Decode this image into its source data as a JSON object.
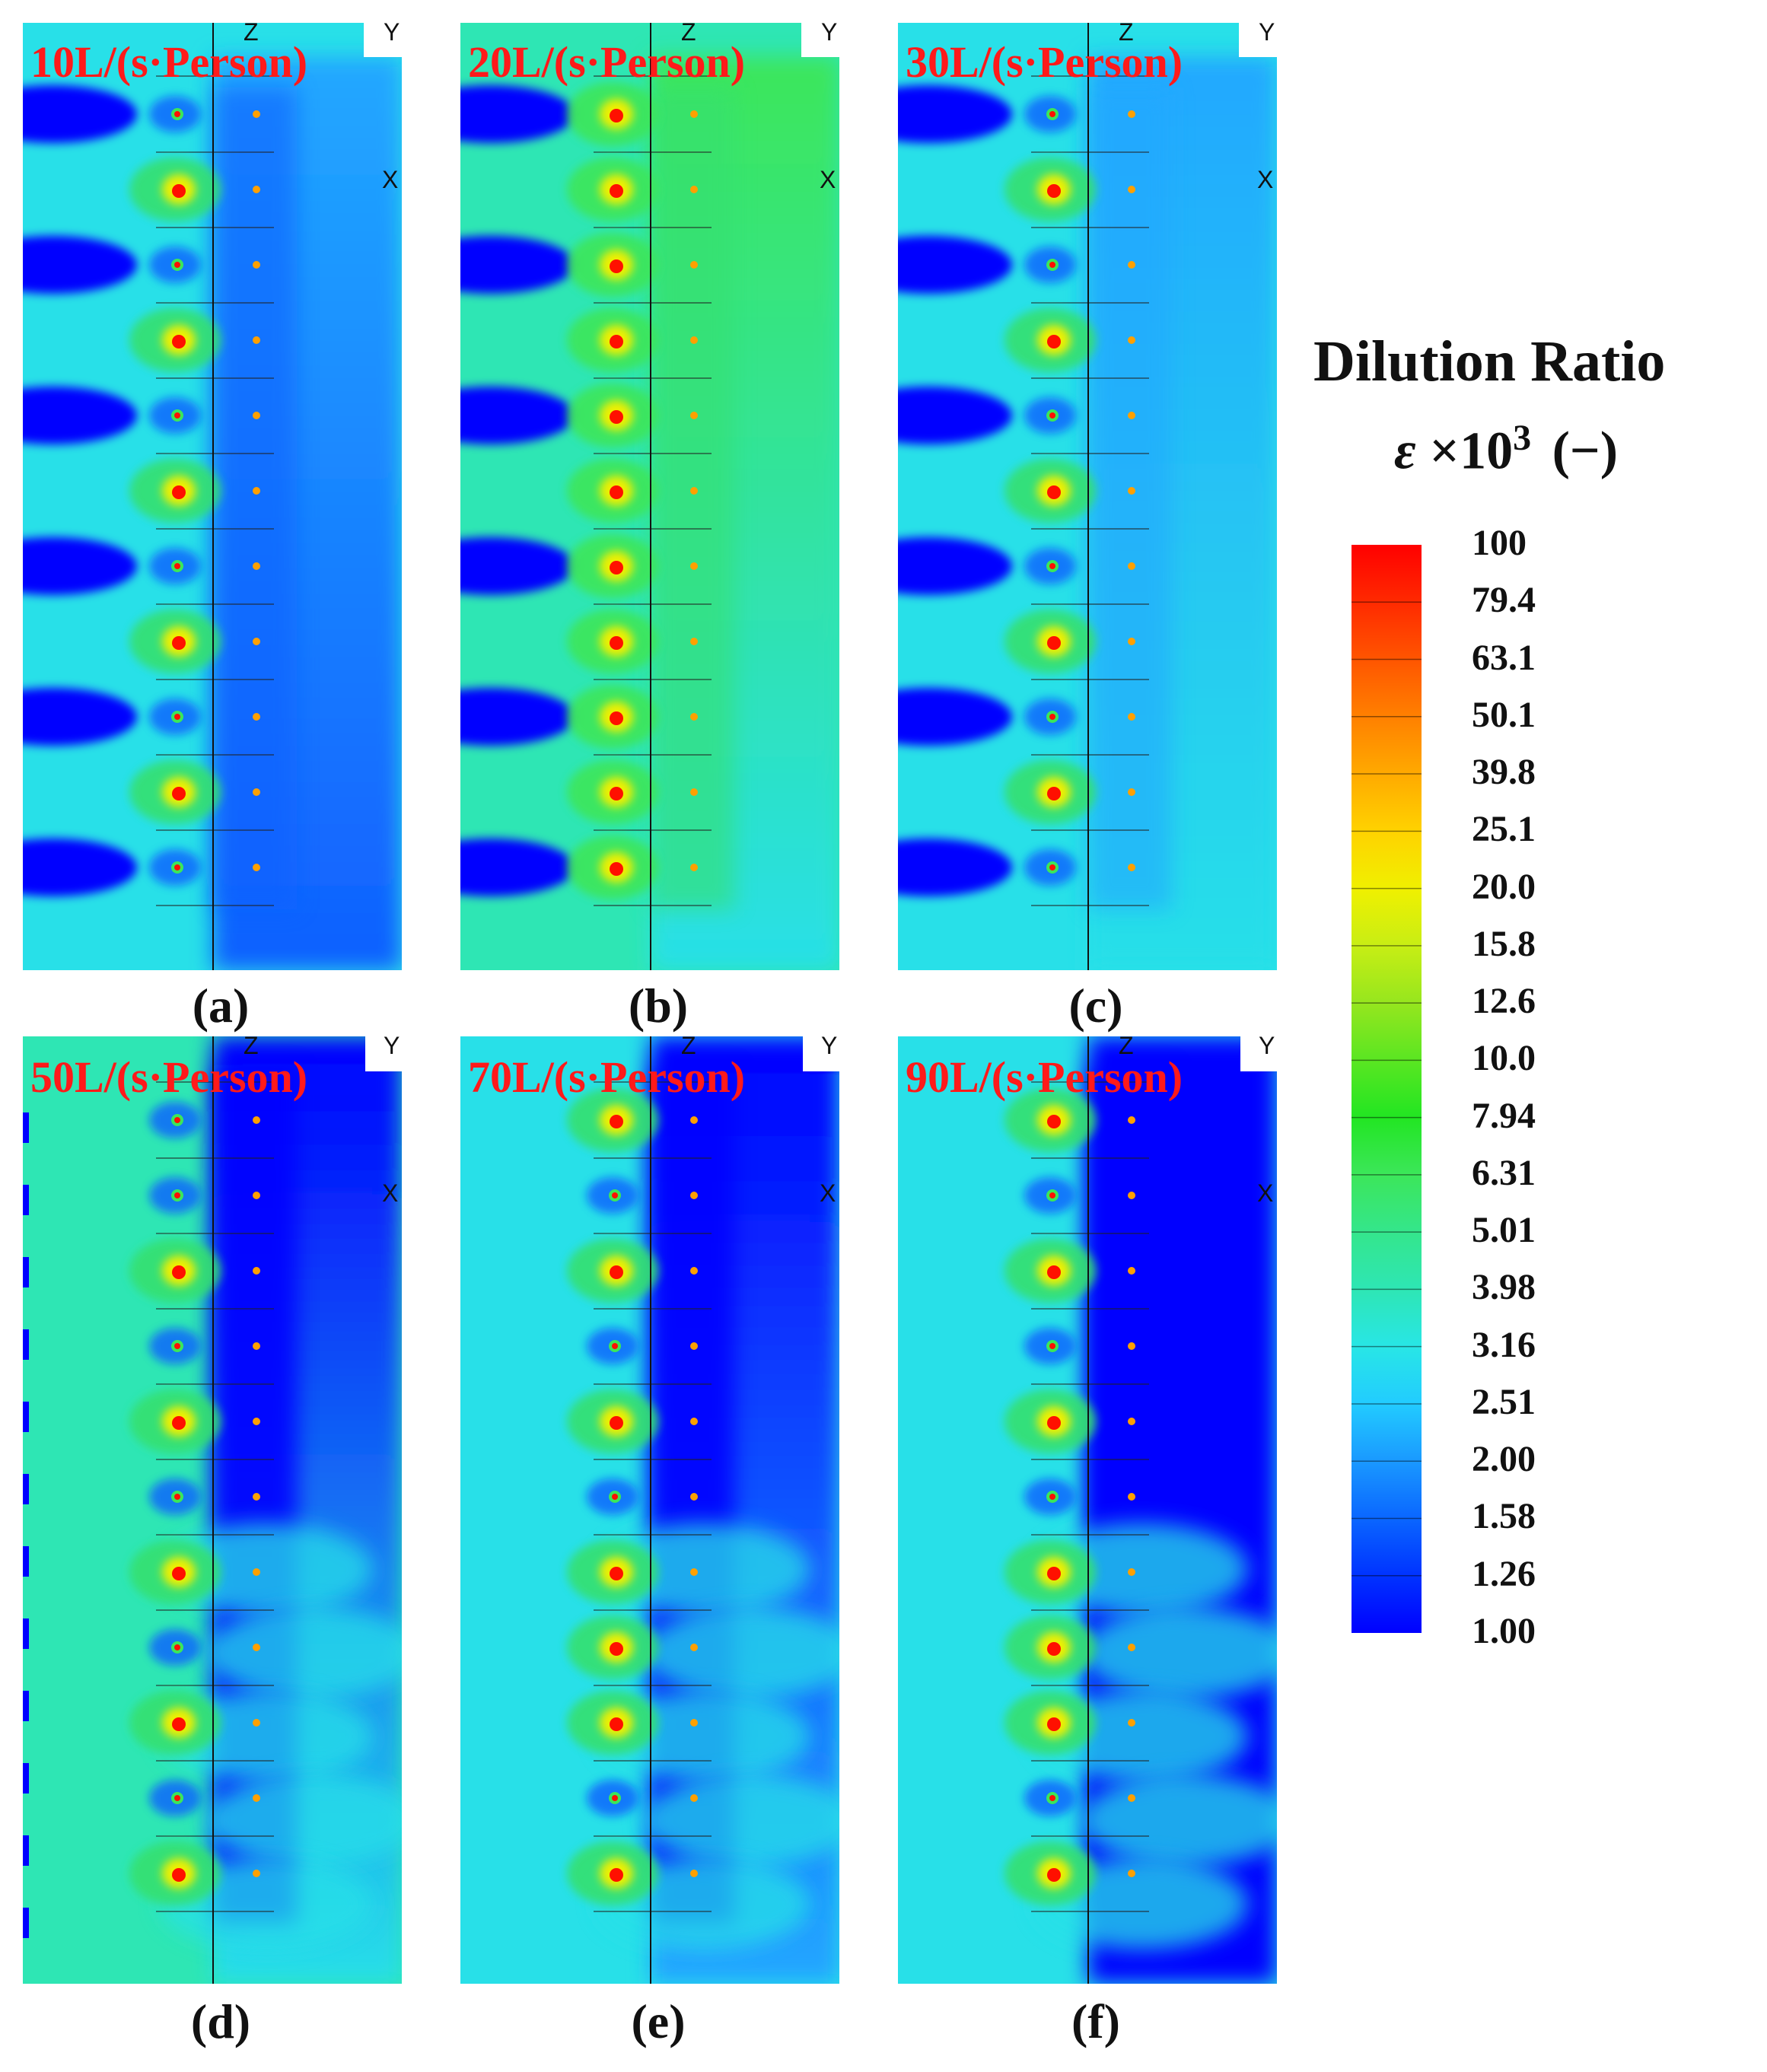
{
  "panels": [
    {
      "id": "a",
      "label": "10L/(s·Person)",
      "caption": "(a)"
    },
    {
      "id": "b",
      "label": "20L/(s·Person)",
      "caption": "(b)"
    },
    {
      "id": "c",
      "label": "30L/(s·Person)",
      "caption": "(c)"
    },
    {
      "id": "d",
      "label": "50L/(s·Person)",
      "caption": "(d)"
    },
    {
      "id": "e",
      "label": "70L/(s·Person)",
      "caption": "(e)"
    },
    {
      "id": "f",
      "label": "90L/(s·Person)",
      "caption": "(f)"
    }
  ],
  "axes": {
    "z": "Z",
    "y": "Y",
    "x": "X"
  },
  "legend": {
    "title": "Dilution Ratio",
    "symbol": "ε",
    "multiplier": "×10",
    "exponent": "3",
    "unit": "(−)",
    "ticks": [
      "100",
      "79.4",
      "63.1",
      "50.1",
      "39.8",
      "25.1",
      "20.0",
      "15.8",
      "12.6",
      "10.0",
      "7.94",
      "6.31",
      "5.01",
      "3.98",
      "3.16",
      "2.51",
      "2.00",
      "1.58",
      "1.26",
      "1.00"
    ]
  },
  "colors": {
    "label": "#ff1a1a",
    "scale": [
      "#0000ff",
      "#0033ff",
      "#0a66ff",
      "#1a99ff",
      "#22ccff",
      "#28e6e6",
      "#2ee6b4",
      "#34e68c",
      "#3ce65a",
      "#22e622",
      "#5ae622",
      "#96e61e",
      "#c8ee14",
      "#f0f000",
      "#ffd200",
      "#ffaa00",
      "#ff8000",
      "#ff5500",
      "#ff2a00",
      "#ff0000"
    ]
  }
}
